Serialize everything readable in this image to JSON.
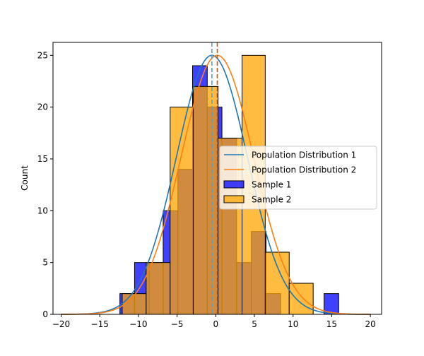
{
  "chart_data": {
    "type": "bar",
    "title": "",
    "xlabel": "",
    "ylabel": "Count",
    "xlim": [
      -21.05,
      21.45
    ],
    "ylim": [
      0,
      26.25
    ],
    "xticks": [
      -20,
      -15,
      -10,
      -5,
      0,
      5,
      10,
      15,
      20
    ],
    "yticks": [
      0,
      5,
      10,
      15,
      20,
      25
    ],
    "xtick_labels": [
      "−20",
      "−15",
      "−10",
      "−5",
      "0",
      "5",
      "10",
      "15",
      "20"
    ],
    "ytick_labels": [
      "0",
      "5",
      "10",
      "15",
      "20",
      "25"
    ],
    "grid": false,
    "legend_position": "center-right",
    "series": [
      {
        "name": "Sample 1",
        "kind": "histogram",
        "color": "#0000ff",
        "bin_edges": [
          -12.4,
          -10.5,
          -8.6,
          -6.8,
          -4.9,
          -3.0,
          -1.1,
          0.8,
          2.7,
          4.6,
          6.5,
          8.4,
          10.2,
          12.1,
          14.0,
          15.9
        ],
        "counts": [
          2,
          5,
          5,
          10,
          14,
          24,
          20,
          17,
          5,
          8,
          2,
          0,
          0,
          0,
          2
        ]
      },
      {
        "name": "Sample 2",
        "kind": "histogram",
        "color": "#ffa500",
        "bin_edges": [
          -12.1,
          -9.0,
          -5.9,
          -2.9,
          0.3,
          3.4,
          6.4,
          9.5,
          12.6
        ],
        "counts": [
          2,
          5,
          20,
          22,
          17,
          25,
          6,
          3
        ]
      },
      {
        "name": "Population Distribution 1",
        "kind": "normal-curve",
        "color": "#1f77b4",
        "mean": -0.5,
        "std": 4.6,
        "peak": 25
      },
      {
        "name": "Population Distribution 2",
        "kind": "normal-curve",
        "color": "#ff7f0e",
        "mean": 0.2,
        "std": 4.7,
        "peak": 25
      }
    ],
    "mean_lines": [
      {
        "series": "Sample 1",
        "x": -0.5,
        "color": "#4fa3d9"
      },
      {
        "series": "Sample 2",
        "x": 0.2,
        "color": "#d45500"
      }
    ],
    "legend": [
      {
        "label": "Population Distribution 1",
        "color": "#1f77b4",
        "kind": "line"
      },
      {
        "label": "Population Distribution 2",
        "color": "#ff7f0e",
        "kind": "line"
      },
      {
        "label": "Sample 1",
        "color": "#0000ff",
        "kind": "patch"
      },
      {
        "label": "Sample 2",
        "color": "#ffa500",
        "kind": "patch"
      }
    ]
  }
}
